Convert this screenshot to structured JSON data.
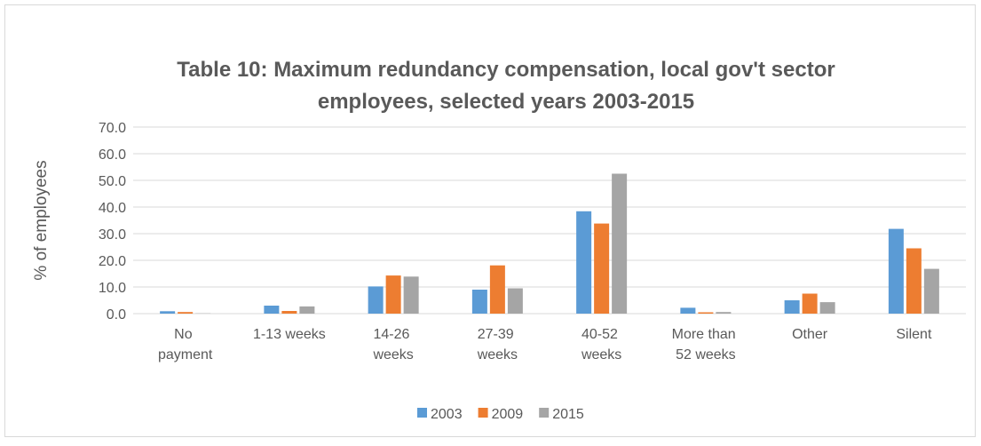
{
  "chart_data": {
    "type": "bar",
    "title": [
      "Table 10: Maximum redundancy compensation, local gov't sector",
      "employees, selected years 2003-2015"
    ],
    "y_label": "% of employees",
    "categories": [
      "No payment",
      "1-13 weeks",
      "14-26 weeks",
      "27-39 weeks",
      "40-52 weeks",
      "More than 52 weeks",
      "Other",
      "Silent"
    ],
    "series": [
      {
        "name": "2003",
        "color": "#5b9bd5",
        "values": [
          0.9,
          3.0,
          10.2,
          9.0,
          38.4,
          2.2,
          5.0,
          31.8
        ]
      },
      {
        "name": "2009",
        "color": "#ed7d31",
        "values": [
          0.6,
          1.0,
          14.3,
          18.1,
          33.8,
          0.5,
          7.5,
          24.5
        ]
      },
      {
        "name": "2015",
        "color": "#a5a5a5",
        "values": [
          0.1,
          2.7,
          13.9,
          9.5,
          52.5,
          0.6,
          4.3,
          16.8
        ]
      }
    ],
    "ylim": [
      0,
      70
    ],
    "yticks": [
      {
        "value": 0,
        "label": "0.0"
      },
      {
        "value": 10,
        "label": "10.0"
      },
      {
        "value": 20,
        "label": "20.0"
      },
      {
        "value": 30,
        "label": "30.0"
      },
      {
        "value": 40,
        "label": "40.0"
      },
      {
        "value": 50,
        "label": "50.0"
      },
      {
        "value": 60,
        "label": "60.0"
      },
      {
        "value": 70,
        "label": "70.0"
      }
    ],
    "grid": true,
    "legend": "bottom"
  }
}
